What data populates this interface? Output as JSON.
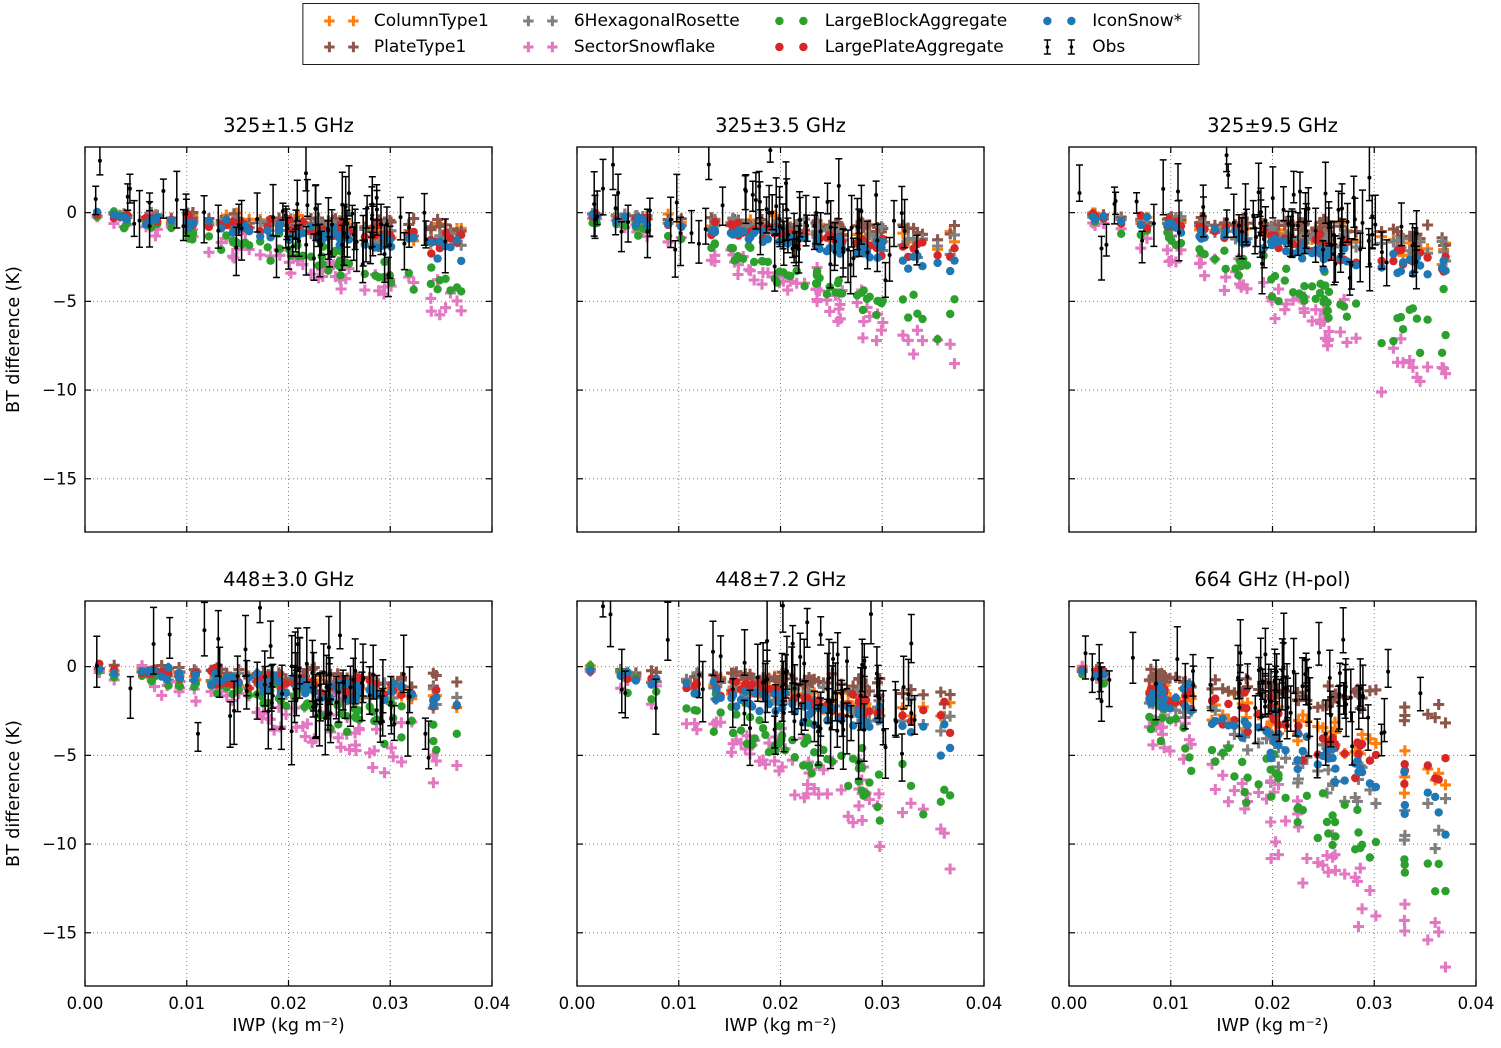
{
  "legend": {
    "entries": [
      {
        "label": "ColumnType1",
        "color": "#ff7f0e",
        "marker": "plus"
      },
      {
        "label": "PlateType1",
        "color": "#8c564b",
        "marker": "plus"
      },
      {
        "label": "6HexagonalRosette",
        "color": "#7f7f7f",
        "marker": "plus"
      },
      {
        "label": "SectorSnowflake",
        "color": "#e377c2",
        "marker": "plus"
      },
      {
        "label": "LargeBlockAggregate",
        "color": "#2ca02c",
        "marker": "dot"
      },
      {
        "label": "LargePlateAggregate",
        "color": "#d62728",
        "marker": "dot"
      },
      {
        "label": "IconSnow*",
        "color": "#1f77b4",
        "marker": "dot"
      },
      {
        "label": "Obs",
        "color": "#000000",
        "marker": "errorbar"
      }
    ],
    "columns": [
      [
        0,
        1
      ],
      [
        2,
        3
      ],
      [
        4,
        5
      ],
      [
        6,
        7
      ]
    ]
  },
  "axes": {
    "ylabel": "BT difference (K)",
    "xlabel": "IWP (kg m⁻²)"
  },
  "chart_data": [
    {
      "type": "scatter",
      "title": "325±1.5 GHz",
      "xlim": [
        0,
        0.04
      ],
      "ylim": [
        -18,
        3.7
      ],
      "xticks": [
        0,
        0.01,
        0.02,
        0.03,
        0.04
      ],
      "yticks": [
        0,
        -5,
        -10,
        -15
      ],
      "grid": true,
      "show_xtick_labels": false,
      "show_ytick_labels": true,
      "n_per_series": 68,
      "series": [
        {
          "name": "ColumnType1",
          "y_at_0": -0.2,
          "y_at_max": -1.1,
          "jitter": 0.3
        },
        {
          "name": "PlateType1",
          "y_at_0": -0.2,
          "y_at_max": -0.8,
          "jitter": 0.25
        },
        {
          "name": "6HexagonalRosette",
          "y_at_0": -0.2,
          "y_at_max": -1.3,
          "jitter": 0.3
        },
        {
          "name": "SectorSnowflake",
          "y_at_0": -0.2,
          "y_at_max": -5.2,
          "jitter": 0.6
        },
        {
          "name": "LargeBlockAggregate",
          "y_at_0": -0.2,
          "y_at_max": -4.2,
          "jitter": 0.5
        },
        {
          "name": "LargePlateAggregate",
          "y_at_0": -0.2,
          "y_at_max": -1.6,
          "jitter": 0.3
        },
        {
          "name": "IconSnow*",
          "y_at_0": -0.2,
          "y_at_max": -2.1,
          "jitter": 0.3
        }
      ],
      "obs": {
        "name": "Obs",
        "y_drift": -1.3,
        "spread": 0.9,
        "err_mean": 1.1,
        "n": 78
      }
    },
    {
      "type": "scatter",
      "title": "325±3.5 GHz",
      "xlim": [
        0,
        0.04
      ],
      "ylim": [
        -18,
        3.7
      ],
      "xticks": [
        0,
        0.01,
        0.02,
        0.03,
        0.04
      ],
      "yticks": [
        0,
        -5,
        -10,
        -15
      ],
      "grid": true,
      "show_xtick_labels": false,
      "show_ytick_labels": false,
      "n_per_series": 68,
      "series": [
        {
          "name": "ColumnType1",
          "y_at_0": -0.2,
          "y_at_max": -1.6,
          "jitter": 0.3
        },
        {
          "name": "PlateType1",
          "y_at_0": -0.2,
          "y_at_max": -1.0,
          "jitter": 0.25
        },
        {
          "name": "6HexagonalRosette",
          "y_at_0": -0.2,
          "y_at_max": -1.9,
          "jitter": 0.35
        },
        {
          "name": "SectorSnowflake",
          "y_at_0": -0.2,
          "y_at_max": -7.8,
          "jitter": 0.7
        },
        {
          "name": "LargeBlockAggregate",
          "y_at_0": -0.2,
          "y_at_max": -6.2,
          "jitter": 0.6
        },
        {
          "name": "LargePlateAggregate",
          "y_at_0": -0.2,
          "y_at_max": -2.3,
          "jitter": 0.35
        },
        {
          "name": "IconSnow*",
          "y_at_0": -0.2,
          "y_at_max": -2.9,
          "jitter": 0.35
        }
      ],
      "obs": {
        "name": "Obs",
        "y_drift": -1.6,
        "spread": 0.9,
        "err_mean": 1.1,
        "n": 78
      }
    },
    {
      "type": "scatter",
      "title": "325±9.5 GHz",
      "xlim": [
        0,
        0.04
      ],
      "ylim": [
        -18,
        3.7
      ],
      "xticks": [
        0,
        0.01,
        0.02,
        0.03,
        0.04
      ],
      "yticks": [
        0,
        -5,
        -10,
        -15
      ],
      "grid": true,
      "show_xtick_labels": false,
      "show_ytick_labels": false,
      "n_per_series": 68,
      "series": [
        {
          "name": "ColumnType1",
          "y_at_0": -0.2,
          "y_at_max": -1.9,
          "jitter": 0.35
        },
        {
          "name": "PlateType1",
          "y_at_0": -0.2,
          "y_at_max": -1.3,
          "jitter": 0.3
        },
        {
          "name": "6HexagonalRosette",
          "y_at_0": -0.2,
          "y_at_max": -2.3,
          "jitter": 0.4
        },
        {
          "name": "SectorSnowflake",
          "y_at_0": -0.2,
          "y_at_max": -9.2,
          "jitter": 0.8
        },
        {
          "name": "LargeBlockAggregate",
          "y_at_0": -0.2,
          "y_at_max": -7.2,
          "jitter": 0.7
        },
        {
          "name": "LargePlateAggregate",
          "y_at_0": -0.2,
          "y_at_max": -2.9,
          "jitter": 0.4
        },
        {
          "name": "IconSnow*",
          "y_at_0": -0.2,
          "y_at_max": -3.4,
          "jitter": 0.4
        }
      ],
      "obs": {
        "name": "Obs",
        "y_drift": -1.4,
        "spread": 1.0,
        "err_mean": 1.1,
        "n": 78
      }
    },
    {
      "type": "scatter",
      "title": "448±3.0 GHz",
      "xlim": [
        0,
        0.04
      ],
      "ylim": [
        -18,
        3.7
      ],
      "xticks": [
        0,
        0.01,
        0.02,
        0.03,
        0.04
      ],
      "yticks": [
        0,
        -5,
        -10,
        -15
      ],
      "grid": true,
      "show_xtick_labels": true,
      "show_ytick_labels": true,
      "n_per_series": 68,
      "series": [
        {
          "name": "ColumnType1",
          "y_at_0": -0.2,
          "y_at_max": -1.6,
          "jitter": 0.35
        },
        {
          "name": "PlateType1",
          "y_at_0": -0.2,
          "y_at_max": -0.9,
          "jitter": 0.3
        },
        {
          "name": "6HexagonalRosette",
          "y_at_0": -0.2,
          "y_at_max": -1.9,
          "jitter": 0.4
        },
        {
          "name": "SectorSnowflake",
          "y_at_0": -0.2,
          "y_at_max": -5.7,
          "jitter": 0.8
        },
        {
          "name": "LargeBlockAggregate",
          "y_at_0": -0.2,
          "y_at_max": -3.8,
          "jitter": 0.6
        },
        {
          "name": "LargePlateAggregate",
          "y_at_0": -0.2,
          "y_at_max": -1.6,
          "jitter": 0.35
        },
        {
          "name": "IconSnow*",
          "y_at_0": -0.2,
          "y_at_max": -1.9,
          "jitter": 0.4
        }
      ],
      "obs": {
        "name": "Obs",
        "y_drift": -2.2,
        "spread": 1.3,
        "err_mean": 1.3,
        "n": 78
      }
    },
    {
      "type": "scatter",
      "title": "448±7.2 GHz",
      "xlim": [
        0,
        0.04
      ],
      "ylim": [
        -18,
        3.7
      ],
      "xticks": [
        0,
        0.01,
        0.02,
        0.03,
        0.04
      ],
      "yticks": [
        0,
        -5,
        -10,
        -15
      ],
      "grid": true,
      "show_xtick_labels": true,
      "show_ytick_labels": false,
      "n_per_series": 68,
      "series": [
        {
          "name": "ColumnType1",
          "y_at_0": -0.2,
          "y_at_max": -2.9,
          "jitter": 0.4
        },
        {
          "name": "PlateType1",
          "y_at_0": -0.2,
          "y_at_max": -1.4,
          "jitter": 0.3
        },
        {
          "name": "6HexagonalRosette",
          "y_at_0": -0.2,
          "y_at_max": -3.3,
          "jitter": 0.5
        },
        {
          "name": "SectorSnowflake",
          "y_at_0": -0.2,
          "y_at_max": -10.2,
          "jitter": 1.0
        },
        {
          "name": "LargeBlockAggregate",
          "y_at_0": -0.2,
          "y_at_max": -8.2,
          "jitter": 0.9
        },
        {
          "name": "LargePlateAggregate",
          "y_at_0": -0.2,
          "y_at_max": -3.1,
          "jitter": 0.45
        },
        {
          "name": "IconSnow*",
          "y_at_0": -0.2,
          "y_at_max": -4.1,
          "jitter": 0.5
        }
      ],
      "obs": {
        "name": "Obs",
        "y_drift": -2.8,
        "spread": 1.5,
        "err_mean": 1.4,
        "n": 78
      }
    },
    {
      "type": "scatter",
      "title": "664 GHz (H-pol)",
      "xlim": [
        0,
        0.04
      ],
      "ylim": [
        -18,
        3.7
      ],
      "xticks": [
        0,
        0.01,
        0.02,
        0.03,
        0.04
      ],
      "yticks": [
        0,
        -5,
        -10,
        -15
      ],
      "grid": true,
      "show_xtick_labels": true,
      "show_ytick_labels": false,
      "n_per_series": 68,
      "series": [
        {
          "name": "ColumnType1",
          "y_at_0": -0.2,
          "y_at_max": -6.0,
          "jitter": 0.7
        },
        {
          "name": "PlateType1",
          "y_at_0": -0.2,
          "y_at_max": -2.6,
          "jitter": 0.45
        },
        {
          "name": "6HexagonalRosette",
          "y_at_0": -0.2,
          "y_at_max": -9.2,
          "jitter": 0.9
        },
        {
          "name": "SectorSnowflake",
          "y_at_0": -0.2,
          "y_at_max": -16.6,
          "jitter": 1.3
        },
        {
          "name": "LargeBlockAggregate",
          "y_at_0": -0.2,
          "y_at_max": -13.6,
          "jitter": 1.2
        },
        {
          "name": "LargePlateAggregate",
          "y_at_0": -0.2,
          "y_at_max": -6.2,
          "jitter": 0.8
        },
        {
          "name": "IconSnow*",
          "y_at_0": -0.2,
          "y_at_max": -8.2,
          "jitter": 0.8
        }
      ],
      "obs": {
        "name": "Obs",
        "y_drift": -2.3,
        "spread": 1.2,
        "err_mean": 1.2,
        "n": 78
      }
    }
  ]
}
